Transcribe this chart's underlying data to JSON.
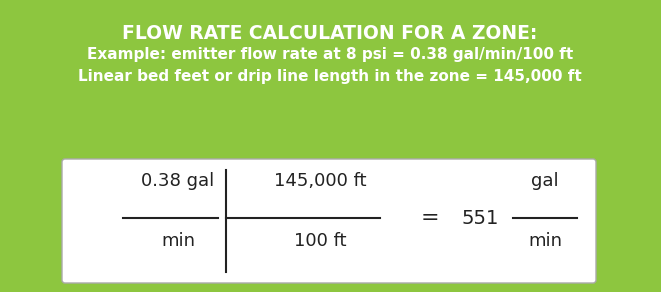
{
  "bg_color": "#8dc63f",
  "title": "FLOW RATE CALCULATION FOR A ZONE:",
  "line1": "Example: emitter flow rate at 8 psi = 0.38 gal/min/100 ft",
  "line2": "Linear bed feet or drip line length in the zone = 145,000 ft",
  "title_color": "#ffffff",
  "text_color": "#ffffff",
  "box_bg": "#ffffff",
  "box_edge": "#aaaaaa",
  "formula_color": "#222222",
  "title_fontsize": 13.5,
  "body_fontsize": 11,
  "formula_fontsize": 13
}
